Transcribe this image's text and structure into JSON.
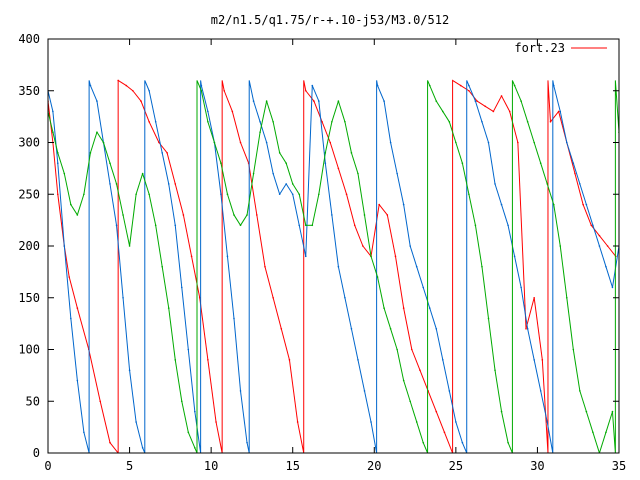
{
  "chart_data": {
    "type": "line",
    "title": "m2/n1.5/q1.75/r-+.10-j53/M3.0/512",
    "xlabel": "",
    "ylabel": "",
    "xlim": [
      0,
      35
    ],
    "ylim": [
      0,
      400
    ],
    "x_ticks": [
      "0",
      "5",
      "10",
      "15",
      "20",
      "25",
      "30",
      "35"
    ],
    "y_ticks": [
      "0",
      "50",
      "100",
      "150",
      "200",
      "250",
      "300",
      "350",
      "400"
    ],
    "grid": false,
    "legend_position": "top-right",
    "legend": [
      "fort.23"
    ],
    "wrap_period": 360,
    "series": [
      {
        "name": "fort.23",
        "color": "#ff0000",
        "x": [
          0,
          0.3,
          0.6,
          1.0,
          1.3,
          1.8,
          2.5,
          3.2,
          3.8,
          4.3,
          4.8,
          5.2,
          5.7,
          6.2,
          6.8,
          7.3,
          7.8,
          8.3,
          8.8,
          9.3,
          9.8,
          10.3,
          10.8,
          11.3,
          11.8,
          12.3,
          12.8,
          13.3,
          13.8,
          14.3,
          14.8,
          15.3,
          15.8,
          16.3,
          16.8,
          17.3,
          17.8,
          18.3,
          18.8,
          19.3,
          19.8,
          20.3,
          20.8,
          21.3,
          21.8,
          22.3,
          22.8,
          23.3,
          23.8,
          24.3,
          24.8,
          25.3,
          25.8,
          26.3,
          26.8,
          27.3,
          27.8,
          28.3,
          28.8,
          29.3,
          29.8,
          30.3,
          30.8,
          31.3,
          31.8,
          32.3,
          32.8,
          33.3,
          33.8,
          34.3,
          34.8
        ],
        "y": [
          340,
          300,
          250,
          200,
          170,
          140,
          100,
          50,
          10,
          360,
          355,
          350,
          340,
          320,
          300,
          290,
          260,
          230,
          190,
          150,
          90,
          30,
          350,
          330,
          300,
          280,
          230,
          180,
          150,
          120,
          90,
          30,
          350,
          340,
          320,
          300,
          275,
          250,
          220,
          200,
          190,
          240,
          230,
          190,
          140,
          100,
          80,
          60,
          40,
          20,
          0,
          355,
          350,
          340,
          335,
          330,
          345,
          330,
          300,
          120,
          150,
          90,
          320,
          330,
          300,
          270,
          240,
          220,
          210,
          200,
          190
        ]
      },
      {
        "name": "",
        "color": "#0066cc",
        "x": [
          0,
          0.3,
          0.6,
          1.0,
          1.4,
          1.8,
          2.2,
          2.6,
          3.0,
          3.4,
          3.8,
          4.2,
          4.6,
          5.0,
          5.4,
          5.8,
          6.2,
          6.6,
          7.0,
          7.4,
          7.8,
          8.2,
          8.6,
          9.0,
          9.4,
          9.8,
          10.2,
          10.6,
          11.0,
          11.4,
          11.8,
          12.2,
          12.6,
          13.0,
          13.4,
          13.8,
          14.2,
          14.6,
          15.0,
          15.4,
          15.8,
          16.2,
          16.6,
          17.0,
          17.4,
          17.8,
          18.2,
          18.6,
          19.0,
          19.4,
          19.8,
          20.2,
          20.6,
          21.0,
          21.4,
          21.8,
          22.2,
          22.6,
          23.0,
          23.4,
          23.8,
          24.2,
          24.6,
          25.0,
          25.4,
          25.8,
          26.2,
          26.6,
          27.0,
          27.4,
          27.8,
          28.2,
          28.6,
          29.0,
          29.4,
          29.8,
          30.2,
          30.6,
          31.0,
          31.4,
          31.8,
          32.2,
          32.6,
          33.0,
          33.4,
          33.8,
          34.2,
          34.6,
          35.0
        ],
        "y": [
          350,
          330,
          280,
          200,
          130,
          70,
          20,
          355,
          340,
          300,
          260,
          220,
          150,
          80,
          30,
          5,
          350,
          320,
          290,
          260,
          220,
          160,
          100,
          40,
          355,
          330,
          300,
          250,
          190,
          130,
          60,
          10,
          340,
          320,
          300,
          270,
          250,
          260,
          250,
          220,
          190,
          355,
          340,
          280,
          230,
          180,
          150,
          120,
          90,
          60,
          30,
          355,
          340,
          300,
          270,
          240,
          200,
          180,
          160,
          140,
          120,
          90,
          60,
          30,
          10,
          355,
          340,
          320,
          300,
          260,
          240,
          220,
          190,
          160,
          120,
          90,
          60,
          30,
          355,
          330,
          300,
          280,
          260,
          240,
          220,
          200,
          180,
          160,
          200
        ]
      },
      {
        "name": "",
        "color": "#00aa00",
        "x": [
          0,
          0.3,
          0.6,
          1.0,
          1.4,
          1.8,
          2.2,
          2.6,
          3.0,
          3.4,
          3.8,
          4.2,
          4.6,
          5.0,
          5.4,
          5.8,
          6.2,
          6.6,
          7.0,
          7.4,
          7.8,
          8.2,
          8.6,
          9.0,
          9.4,
          9.8,
          10.2,
          10.6,
          11.0,
          11.4,
          11.8,
          12.2,
          12.6,
          13.0,
          13.4,
          13.8,
          14.2,
          14.6,
          15.0,
          15.4,
          15.8,
          16.2,
          16.6,
          17.0,
          17.4,
          17.8,
          18.2,
          18.6,
          19.0,
          19.4,
          19.8,
          20.2,
          20.6,
          21.0,
          21.4,
          21.8,
          22.2,
          22.6,
          23.0,
          23.4,
          23.8,
          24.2,
          24.6,
          25.0,
          25.4,
          25.8,
          26.2,
          26.6,
          27.0,
          27.4,
          27.8,
          28.2,
          28.6,
          29.0,
          29.4,
          29.8,
          30.2,
          30.6,
          31.0,
          31.4,
          31.8,
          32.2,
          32.6,
          33.0,
          33.4,
          33.8,
          34.2,
          34.6,
          35.0
        ],
        "y": [
          330,
          310,
          290,
          270,
          240,
          230,
          250,
          290,
          310,
          300,
          280,
          260,
          230,
          200,
          250,
          270,
          250,
          220,
          180,
          140,
          90,
          50,
          20,
          5,
          350,
          320,
          300,
          280,
          250,
          230,
          220,
          230,
          270,
          310,
          340,
          320,
          290,
          280,
          260,
          250,
          220,
          220,
          250,
          290,
          320,
          340,
          320,
          290,
          270,
          230,
          190,
          170,
          140,
          120,
          100,
          70,
          50,
          30,
          10,
          355,
          340,
          330,
          320,
          300,
          280,
          250,
          220,
          180,
          130,
          80,
          40,
          10,
          355,
          340,
          320,
          300,
          280,
          260,
          240,
          200,
          150,
          100,
          60,
          40,
          20,
          0,
          20,
          40,
          310
        ]
      }
    ]
  }
}
